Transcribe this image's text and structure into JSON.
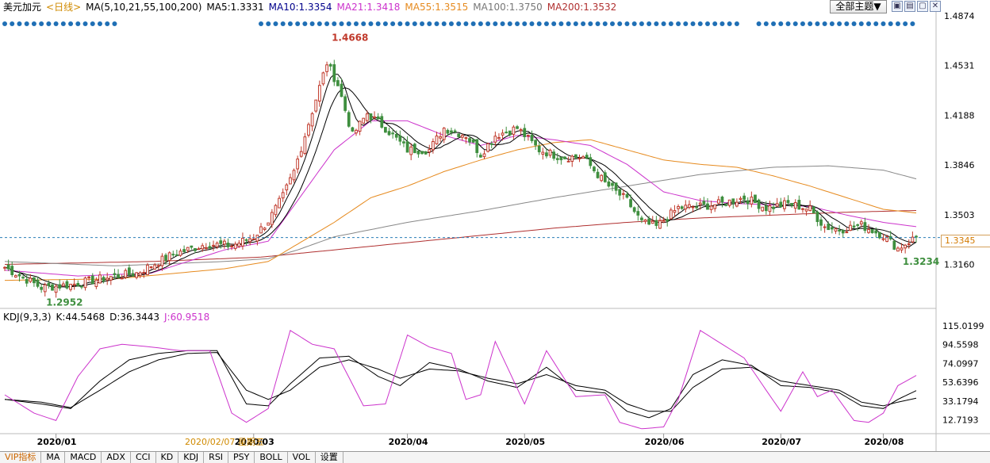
{
  "header": {
    "symbol": "美元加元",
    "period": "<日线>",
    "ma_label": "MA(5,10,21,55,100,200)",
    "ma5": "MA5:1.3331",
    "ma10": "MA10:1.3354",
    "ma21": "MA21:1.3418",
    "ma55": "MA55:1.3515",
    "ma100": "MA100:1.3750",
    "ma200": "MA200:1.3532"
  },
  "toolbar": {
    "theme_button": "全部主题▼",
    "btn1": "▣",
    "btn2": "▤",
    "btn3": "▢",
    "btn4": "✕"
  },
  "colors": {
    "up": "#c0392b",
    "down": "#3f8f3f",
    "ma5": "#000000",
    "ma10": "#000000",
    "ma21": "#cc33cc",
    "ma55": "#e68a1e",
    "ma100": "#888888",
    "ma200": "#b03030",
    "k": "#000000",
    "d": "#000000",
    "j": "#cc33cc",
    "signal": "#1f6fb5"
  },
  "current_price": "1.3345",
  "kdj_header": {
    "label": "KDJ(9,3,3)",
    "k": "K:44.5468",
    "d": "D:36.3443",
    "j": "J:60.9518"
  },
  "tabs": [
    "VIP指标",
    "MA",
    "MACD",
    "ADX",
    "CCI",
    "KD",
    "KDJ",
    "RSI",
    "PSY",
    "BOLL",
    "VOL",
    "设置"
  ],
  "chart_data": [
    {
      "type": "candlestick",
      "title": "美元加元 日线",
      "y_tick_labels": [
        "1.4874",
        "1.4531",
        "1.4188",
        "1.3846",
        "1.3503",
        "1.3160"
      ],
      "ylim": [
        1.2862,
        1.4874
      ],
      "x_tick_labels": [
        "2020/01",
        "2020/03",
        "2020/04",
        "2020/05",
        "2020/06",
        "2020/07",
        "2020/08"
      ],
      "cursor_date_label": "2020/02/07 星期五",
      "annotations": [
        {
          "text": "1.4668",
          "value": 1.4668,
          "kind": "high"
        },
        {
          "text": "1.2952",
          "value": 1.2952,
          "kind": "low"
        },
        {
          "text": "1.3234",
          "value": 1.3234,
          "kind": "low"
        }
      ],
      "ma_legend": [
        "MA5",
        "MA10",
        "MA21",
        "MA55",
        "MA100",
        "MA200"
      ],
      "close_anchors": [
        [
          0,
          1.314
        ],
        [
          10,
          1.3
        ],
        [
          18,
          1.302
        ],
        [
          28,
          1.307
        ],
        [
          36,
          1.31
        ],
        [
          46,
          1.323
        ],
        [
          55,
          1.33
        ],
        [
          62,
          1.329
        ],
        [
          68,
          1.335
        ],
        [
          72,
          1.346
        ],
        [
          76,
          1.363
        ],
        [
          79,
          1.38
        ],
        [
          82,
          1.405
        ],
        [
          85,
          1.43
        ],
        [
          88,
          1.455
        ],
        [
          91,
          1.44
        ],
        [
          95,
          1.405
        ],
        [
          99,
          1.42
        ],
        [
          104,
          1.41
        ],
        [
          110,
          1.395
        ],
        [
          116,
          1.395
        ],
        [
          120,
          1.41
        ],
        [
          126,
          1.405
        ],
        [
          130,
          1.392
        ],
        [
          134,
          1.405
        ],
        [
          140,
          1.41
        ],
        [
          146,
          1.395
        ],
        [
          152,
          1.39
        ],
        [
          158,
          1.39
        ],
        [
          164,
          1.372
        ],
        [
          170,
          1.36
        ],
        [
          174,
          1.345
        ],
        [
          178,
          1.342
        ],
        [
          184,
          1.355
        ],
        [
          190,
          1.356
        ],
        [
          196,
          1.358
        ],
        [
          202,
          1.362
        ],
        [
          208,
          1.355
        ],
        [
          214,
          1.358
        ],
        [
          220,
          1.354
        ],
        [
          224,
          1.342
        ],
        [
          228,
          1.34
        ],
        [
          234,
          1.343
        ],
        [
          240,
          1.336
        ],
        [
          244,
          1.327
        ],
        [
          249,
          1.335
        ]
      ],
      "ma_anchors": {
        "ma21": [
          [
            0,
            1.312
          ],
          [
            20,
            1.308
          ],
          [
            40,
            1.31
          ],
          [
            60,
            1.326
          ],
          [
            72,
            1.332
          ],
          [
            80,
            1.36
          ],
          [
            90,
            1.395
          ],
          [
            100,
            1.415
          ],
          [
            110,
            1.415
          ],
          [
            120,
            1.405
          ],
          [
            130,
            1.398
          ],
          [
            140,
            1.405
          ],
          [
            150,
            1.402
          ],
          [
            160,
            1.398
          ],
          [
            170,
            1.385
          ],
          [
            180,
            1.366
          ],
          [
            190,
            1.36
          ],
          [
            200,
            1.358
          ],
          [
            210,
            1.357
          ],
          [
            220,
            1.356
          ],
          [
            230,
            1.35
          ],
          [
            240,
            1.345
          ],
          [
            249,
            1.342
          ]
        ],
        "ma55": [
          [
            0,
            1.305
          ],
          [
            30,
            1.306
          ],
          [
            60,
            1.313
          ],
          [
            72,
            1.318
          ],
          [
            80,
            1.33
          ],
          [
            90,
            1.345
          ],
          [
            100,
            1.362
          ],
          [
            110,
            1.37
          ],
          [
            120,
            1.38
          ],
          [
            130,
            1.388
          ],
          [
            140,
            1.395
          ],
          [
            150,
            1.4
          ],
          [
            160,
            1.402
          ],
          [
            170,
            1.395
          ],
          [
            180,
            1.388
          ],
          [
            190,
            1.385
          ],
          [
            200,
            1.383
          ],
          [
            210,
            1.377
          ],
          [
            220,
            1.37
          ],
          [
            230,
            1.362
          ],
          [
            240,
            1.354
          ],
          [
            249,
            1.3515
          ]
        ],
        "ma100": [
          [
            0,
            1.318
          ],
          [
            30,
            1.315
          ],
          [
            60,
            1.318
          ],
          [
            72,
            1.32
          ],
          [
            80,
            1.326
          ],
          [
            90,
            1.335
          ],
          [
            110,
            1.345
          ],
          [
            130,
            1.353
          ],
          [
            150,
            1.362
          ],
          [
            170,
            1.37
          ],
          [
            190,
            1.378
          ],
          [
            210,
            1.383
          ],
          [
            225,
            1.384
          ],
          [
            240,
            1.381
          ],
          [
            249,
            1.375
          ]
        ],
        "ma200": [
          [
            0,
            1.316
          ],
          [
            40,
            1.318
          ],
          [
            70,
            1.321
          ],
          [
            90,
            1.326
          ],
          [
            110,
            1.331
          ],
          [
            130,
            1.336
          ],
          [
            150,
            1.341
          ],
          [
            170,
            1.345
          ],
          [
            190,
            1.348
          ],
          [
            210,
            1.35
          ],
          [
            230,
            1.352
          ],
          [
            249,
            1.3532
          ]
        ]
      }
    },
    {
      "type": "line",
      "title": "KDJ(9,3,3)",
      "y_tick_labels": [
        "115.0199",
        "94.5598",
        "74.0997",
        "53.6396",
        "33.1794",
        "12.7193"
      ],
      "ylim": [
        2.0,
        115.0199
      ],
      "series": [
        {
          "name": "K",
          "last": 44.5468
        },
        {
          "name": "D",
          "last": 36.3443
        },
        {
          "name": "J",
          "last": 60.9518
        }
      ],
      "k_anchors": [
        [
          0,
          35
        ],
        [
          10,
          30
        ],
        [
          18,
          25
        ],
        [
          26,
          55
        ],
        [
          34,
          78
        ],
        [
          42,
          85
        ],
        [
          50,
          88
        ],
        [
          58,
          88
        ],
        [
          66,
          30
        ],
        [
          72,
          28
        ],
        [
          78,
          52
        ],
        [
          86,
          80
        ],
        [
          94,
          82
        ],
        [
          102,
          60
        ],
        [
          108,
          50
        ],
        [
          116,
          75
        ],
        [
          124,
          68
        ],
        [
          132,
          55
        ],
        [
          140,
          48
        ],
        [
          148,
          70
        ],
        [
          156,
          45
        ],
        [
          164,
          42
        ],
        [
          170,
          22
        ],
        [
          176,
          15
        ],
        [
          182,
          25
        ],
        [
          188,
          62
        ],
        [
          196,
          78
        ],
        [
          204,
          72
        ],
        [
          212,
          50
        ],
        [
          220,
          48
        ],
        [
          228,
          42
        ],
        [
          234,
          28
        ],
        [
          240,
          25
        ],
        [
          244,
          35
        ],
        [
          249,
          44.5
        ]
      ],
      "d_anchors": [
        [
          0,
          35
        ],
        [
          10,
          32
        ],
        [
          18,
          26
        ],
        [
          26,
          45
        ],
        [
          34,
          65
        ],
        [
          42,
          78
        ],
        [
          50,
          85
        ],
        [
          58,
          86
        ],
        [
          66,
          45
        ],
        [
          72,
          35
        ],
        [
          78,
          45
        ],
        [
          86,
          70
        ],
        [
          94,
          78
        ],
        [
          102,
          68
        ],
        [
          108,
          58
        ],
        [
          116,
          68
        ],
        [
          124,
          66
        ],
        [
          132,
          58
        ],
        [
          140,
          52
        ],
        [
          148,
          62
        ],
        [
          156,
          50
        ],
        [
          164,
          45
        ],
        [
          170,
          30
        ],
        [
          176,
          22
        ],
        [
          182,
          22
        ],
        [
          188,
          48
        ],
        [
          196,
          68
        ],
        [
          204,
          70
        ],
        [
          212,
          55
        ],
        [
          220,
          50
        ],
        [
          228,
          45
        ],
        [
          234,
          32
        ],
        [
          240,
          28
        ],
        [
          244,
          32
        ],
        [
          249,
          36.3
        ]
      ],
      "j_anchors": [
        [
          0,
          40
        ],
        [
          8,
          20
        ],
        [
          14,
          12
        ],
        [
          20,
          60
        ],
        [
          26,
          90
        ],
        [
          32,
          95
        ],
        [
          40,
          92
        ],
        [
          48,
          88
        ],
        [
          56,
          88
        ],
        [
          62,
          20
        ],
        [
          66,
          10
        ],
        [
          72,
          25
        ],
        [
          78,
          110
        ],
        [
          84,
          95
        ],
        [
          90,
          90
        ],
        [
          98,
          28
        ],
        [
          104,
          30
        ],
        [
          110,
          105
        ],
        [
          116,
          92
        ],
        [
          122,
          85
        ],
        [
          126,
          35
        ],
        [
          130,
          40
        ],
        [
          134,
          98
        ],
        [
          142,
          30
        ],
        [
          148,
          88
        ],
        [
          156,
          38
        ],
        [
          164,
          40
        ],
        [
          168,
          10
        ],
        [
          174,
          3
        ],
        [
          180,
          5
        ],
        [
          184,
          35
        ],
        [
          190,
          110
        ],
        [
          196,
          95
        ],
        [
          202,
          80
        ],
        [
          208,
          45
        ],
        [
          212,
          22
        ],
        [
          218,
          65
        ],
        [
          222,
          38
        ],
        [
          226,
          45
        ],
        [
          232,
          12
        ],
        [
          236,
          10
        ],
        [
          240,
          20
        ],
        [
          244,
          50
        ],
        [
          249,
          61
        ]
      ]
    }
  ]
}
